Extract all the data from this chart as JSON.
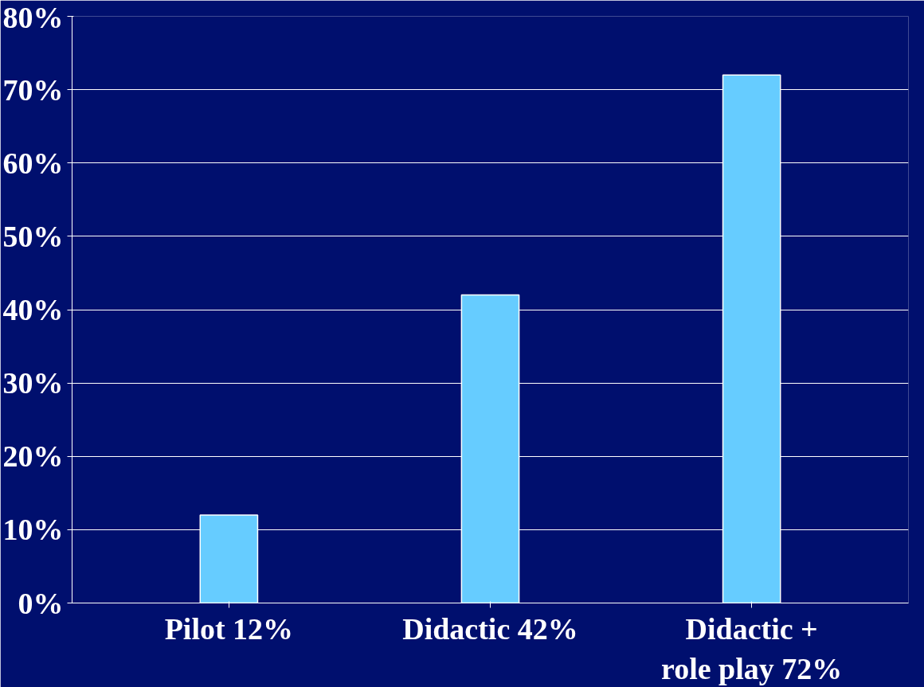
{
  "chart_data": {
    "type": "bar",
    "categories": [
      "Pilot 12%",
      "Didactic 42%",
      "Didactic +\nrole play 72%"
    ],
    "values": [
      12,
      42,
      72
    ],
    "color": "#66ccff",
    "ylim": [
      0,
      80
    ],
    "yticks": [
      {
        "value": 0,
        "label": "0%"
      },
      {
        "value": 10,
        "label": "10%"
      },
      {
        "value": 20,
        "label": "20%"
      },
      {
        "value": 30,
        "label": "30%"
      },
      {
        "value": 40,
        "label": "40%"
      },
      {
        "value": 50,
        "label": "50%"
      },
      {
        "value": 60,
        "label": "60%"
      },
      {
        "value": 70,
        "label": "70%"
      },
      {
        "value": 80,
        "label": "80%"
      }
    ],
    "grid": "y"
  }
}
